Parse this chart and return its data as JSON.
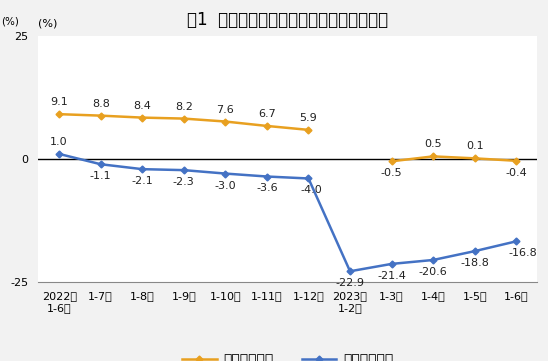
{
  "title": "图1  各月累计营业收入与利润总额同比增速",
  "ylabel": "(%)\n25",
  "ylim": [
    -25,
    25
  ],
  "yticks": [
    -25,
    0,
    25
  ],
  "categories": [
    "2022年\n1-6月",
    "1-7月",
    "1-8月",
    "1-9月",
    "1-10月",
    "1-11月",
    "1-12月",
    "2023年\n1-2月",
    "1-3月",
    "1-4月",
    "1-5月",
    "1-6月"
  ],
  "revenue": [
    9.1,
    8.8,
    8.4,
    8.2,
    7.6,
    6.7,
    5.9,
    null,
    -0.5,
    0.5,
    0.1,
    -0.4
  ],
  "profit": [
    1.0,
    -1.1,
    -2.1,
    -2.3,
    -3.0,
    -3.6,
    -4.0,
    -22.9,
    -21.4,
    -20.6,
    -18.8,
    -16.8
  ],
  "revenue_color": "#E8A020",
  "profit_color": "#4472C4",
  "background_color": "#F2F2F2",
  "plot_bg_color": "#FFFFFF",
  "revenue_label": "营业收入增速",
  "profit_label": "利润总额增速",
  "zero_line_color": "#000000",
  "title_fontsize": 12,
  "annot_fontsize": 8,
  "tick_fontsize": 8,
  "legend_fontsize": 9
}
